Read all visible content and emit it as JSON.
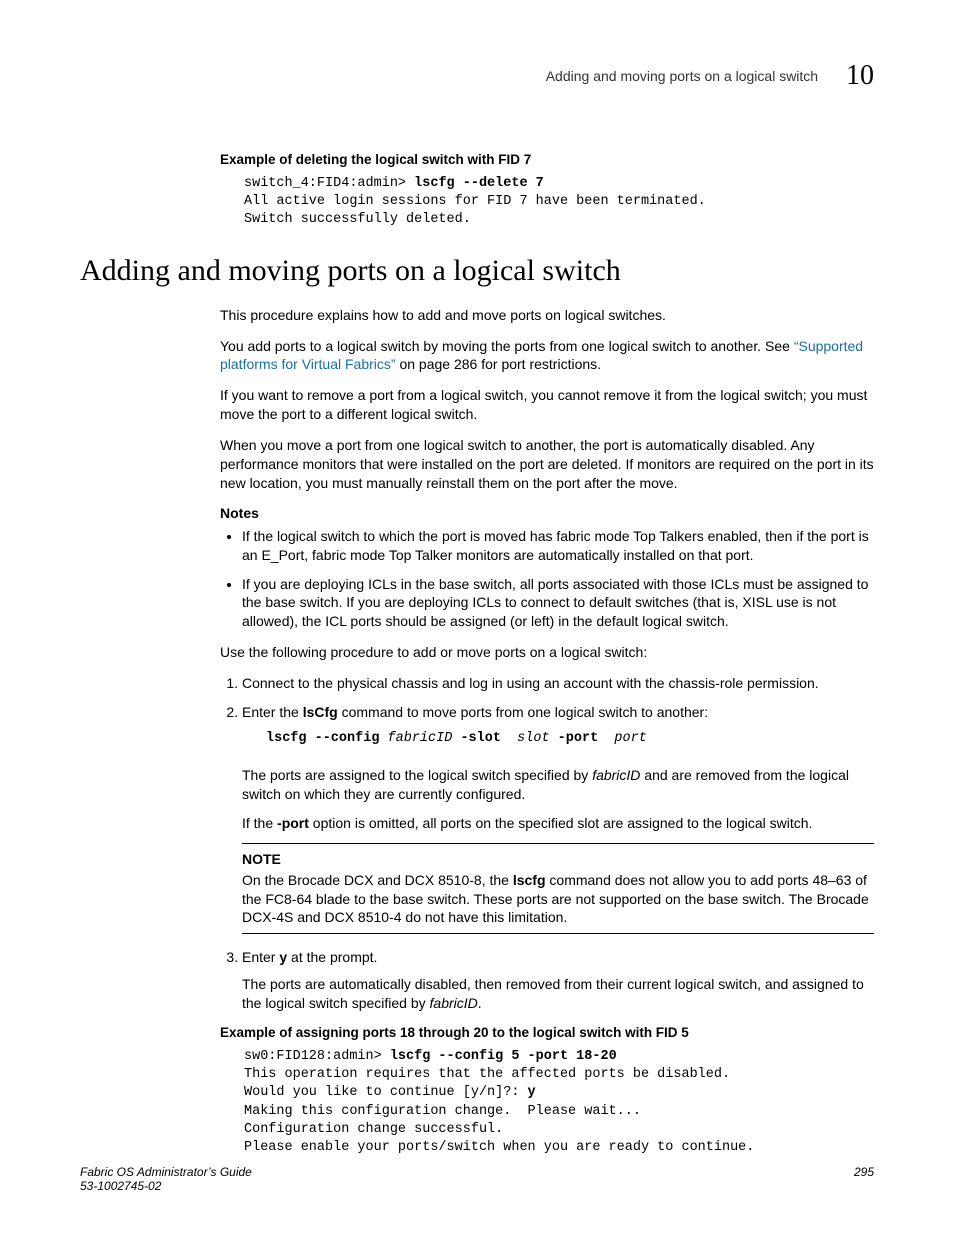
{
  "header": {
    "running_title": "Adding and moving ports on a logical switch",
    "chapter_number": "10"
  },
  "example1": {
    "heading": "Example of deleting the logical switch with FID 7",
    "prompt": "switch_4:FID4:admin> ",
    "command": "lscfg --delete 7",
    "output_line1": "All active login sessions for FID 7 have been terminated.",
    "output_line2": "Switch successfully deleted."
  },
  "section": {
    "title": "Adding and moving ports on a logical switch",
    "intro1": "This procedure explains how to add and move ports on logical switches.",
    "intro2a": "You add ports to a logical switch by moving the ports from one logical switch to another. See ",
    "intro2_link": "“Supported platforms for Virtual Fabrics”",
    "intro2b": " on page 286 for port restrictions.",
    "intro3": "If you want to remove a port from a logical switch, you cannot remove it from the logical switch; you must move the port to a different logical switch.",
    "intro4": "When you move a port from one logical switch to another, the port is automatically disabled. Any performance monitors that were installed on the port are deleted. If monitors are required on the port in its new location, you must manually reinstall them on the port after the move."
  },
  "notes": {
    "heading": "Notes",
    "bullet1": "If the logical switch to which the port is moved has fabric mode Top Talkers enabled, then if the port is an E_Port, fabric mode Top Talker monitors are automatically installed on that port.",
    "bullet2": "If you are deploying ICLs in the base switch, all ports associated with those ICLs must be assigned to the base switch. If you are deploying ICLs to connect to default switches (that is, XISL use is not allowed), the ICL ports should be assigned (or left) in the default logical switch."
  },
  "procedure": {
    "lead": "Use the following procedure to add or move ports on a logical switch:",
    "step1": "Connect to the physical chassis and log in using an account with the chassis-role permission.",
    "step2a": "Enter the ",
    "step2_cmd": "lsCfg",
    "step2b": " command to move ports from one logical switch to another:",
    "cmd_syntax_bold1": "lscfg --config",
    "cmd_syntax_ital1": " fabricID",
    "cmd_syntax_bold2": " -slot",
    "cmd_syntax_ital2": " slot",
    "cmd_syntax_bold3": " -port",
    "cmd_syntax_ital3": " port",
    "step2_p1a": "The ports are assigned to the logical switch specified by ",
    "step2_p1_ital": "fabricID",
    "step2_p1b": " and are removed from the logical switch on which they are currently configured.",
    "step2_p2a": "If the ",
    "step2_p2_bold": "-port",
    "step2_p2b": " option is omitted, all ports on the specified slot are assigned to the logical switch.",
    "note_label": "NOTE",
    "note_body_a": "On the Brocade DCX and DCX 8510-8, the ",
    "note_body_bold": "lscfg",
    "note_body_b": " command does not allow you to add ports 48–63 of the FC8-64 blade to the base switch. These ports are not supported on the base switch. The Brocade DCX-4S and DCX 8510-4 do not have this limitation.",
    "step3a": "Enter ",
    "step3_bold": "y",
    "step3b": " at the prompt.",
    "step3_p1a": "The ports are automatically disabled, then removed from their current logical switch, and assigned to the logical switch specified by ",
    "step3_p1_ital": "fabricID",
    "step3_p1b": "."
  },
  "example2": {
    "heading": "Example of assigning ports 18 through 20 to the logical switch with FID 5",
    "prompt": "sw0:FID128:admin> ",
    "command": "lscfg --config 5 -port 18-20",
    "line1": "This operation requires that the affected ports be disabled.",
    "line2a": "Would you like to continue [y/n]?: ",
    "line2_bold": "y",
    "line3": "Making this configuration change.  Please wait...",
    "line4": "Configuration change successful.",
    "line5": "Please enable your ports/switch when you are ready to continue."
  },
  "footer": {
    "book": "Fabric OS Administrator’s Guide",
    "docnum": "53-1002745-02",
    "page": "295"
  }
}
